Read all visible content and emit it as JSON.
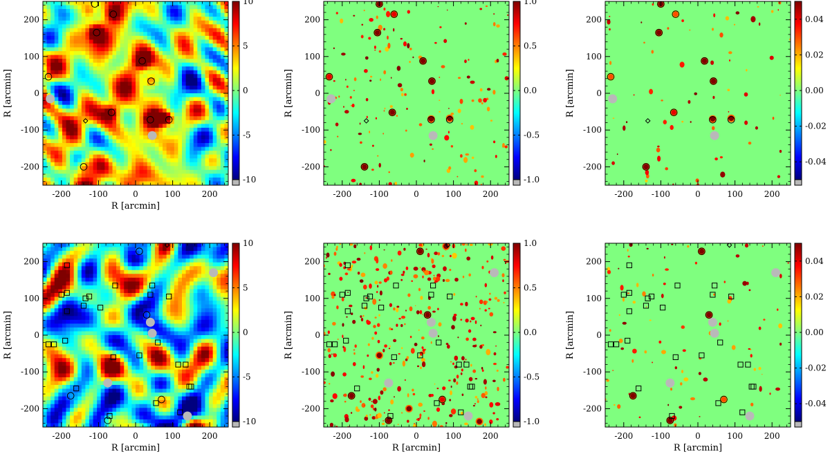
{
  "figure": {
    "colormap": [
      "#00007f",
      "#0000ff",
      "#007fff",
      "#00ffff",
      "#7fff7f",
      "#ffff00",
      "#ff7f00",
      "#ff0000",
      "#7f0000"
    ],
    "background_green": "#7fff7f",
    "masked_color": "#b9b9b9"
  },
  "chart_data": [
    {
      "id": "top-left",
      "type": "heatmap",
      "variant": "smooth",
      "xlabel": "R [arcmin]",
      "ylabel": "R [arcmin]",
      "xlim": [
        -250,
        250
      ],
      "ylim": [
        -250,
        250
      ],
      "xticks": [
        "-200",
        "-100",
        "0",
        "100",
        "200"
      ],
      "yticks": [
        "-200",
        "-100",
        "0",
        "100",
        "200"
      ],
      "colorbar": {
        "range": [
          -10,
          10
        ],
        "ticks": [
          "10",
          "5",
          "0",
          "-5",
          "-10"
        ]
      },
      "bg_level": 0.15,
      "hotspots": [
        [
          -105,
          165,
          10
        ],
        [
          18,
          88,
          10
        ],
        [
          42,
          33,
          9
        ],
        [
          -65,
          -52,
          7
        ],
        [
          45,
          -68,
          10
        ],
        [
          85,
          -68,
          10
        ],
        [
          65,
          -70,
          9
        ],
        [
          -140,
          -200,
          6
        ],
        [
          -235,
          45,
          5
        ],
        [
          -60,
          215,
          5
        ],
        [
          -125,
          225,
          5
        ]
      ],
      "circles": [
        [
          -105,
          165
        ],
        [
          18,
          88
        ],
        [
          42,
          33
        ],
        [
          -65,
          -52
        ],
        [
          40,
          -72
        ],
        [
          90,
          -72
        ],
        [
          -140,
          -200
        ],
        [
          -235,
          45
        ],
        [
          -60,
          215
        ],
        [
          -110,
          243
        ]
      ],
      "squares": [],
      "diamonds": [
        [
          -135,
          -75
        ]
      ],
      "masks": [
        [
          -230,
          -15
        ],
        [
          45,
          -115
        ]
      ]
    },
    {
      "id": "top-middle",
      "type": "heatmap",
      "variant": "sparse",
      "xlabel": "",
      "ylabel": "R [arcmin]",
      "xlim": [
        -250,
        250
      ],
      "ylim": [
        -250,
        250
      ],
      "xticks": [
        "-200",
        "-100",
        "0",
        "100",
        "200"
      ],
      "yticks": [
        "-200",
        "-100",
        "0",
        "100",
        "200"
      ],
      "colorbar": {
        "range": [
          -1.0,
          1.0
        ],
        "ticks": [
          "1.0",
          "0.5",
          "0.0",
          "-0.5",
          "-1.0"
        ]
      },
      "blob_count": 150,
      "hotspots": [
        [
          -105,
          165,
          1
        ],
        [
          18,
          88,
          1
        ],
        [
          42,
          33,
          1
        ],
        [
          -65,
          -52,
          1
        ],
        [
          40,
          -70,
          1
        ],
        [
          90,
          -68,
          1
        ],
        [
          -140,
          -200,
          1
        ],
        [
          -235,
          45,
          0.8
        ],
        [
          -60,
          215,
          0.8
        ],
        [
          -100,
          243,
          1
        ]
      ],
      "circles": [
        [
          -105,
          165
        ],
        [
          18,
          88
        ],
        [
          42,
          33
        ],
        [
          -65,
          -52
        ],
        [
          40,
          -72
        ],
        [
          90,
          -72
        ],
        [
          -140,
          -200
        ],
        [
          -235,
          45
        ],
        [
          -60,
          215
        ],
        [
          -100,
          243
        ]
      ],
      "squares": [],
      "diamonds": [
        [
          -135,
          -75
        ]
      ],
      "masks": [
        [
          -230,
          -15
        ],
        [
          45,
          -115
        ]
      ]
    },
    {
      "id": "top-right",
      "type": "heatmap",
      "variant": "sparse",
      "xlabel": "",
      "ylabel": "R [arcmin]",
      "xlim": [
        -250,
        250
      ],
      "ylim": [
        -250,
        250
      ],
      "xticks": [
        "-200",
        "-100",
        "0",
        "100",
        "200"
      ],
      "yticks": [
        "-200",
        "-100",
        "0",
        "100",
        "200"
      ],
      "colorbar": {
        "range": [
          -0.05,
          0.05
        ],
        "ticks": [
          "0.04",
          "0.02",
          "0.00",
          "-0.02",
          "-0.04"
        ]
      },
      "blob_count": 70,
      "hotspots": [
        [
          -105,
          165,
          1
        ],
        [
          18,
          88,
          1
        ],
        [
          42,
          33,
          1
        ],
        [
          -65,
          -52,
          0.8
        ],
        [
          40,
          -70,
          1
        ],
        [
          90,
          -68,
          1
        ],
        [
          -140,
          -200,
          1
        ],
        [
          -235,
          45,
          0.6
        ],
        [
          -60,
          215,
          0.6
        ],
        [
          -100,
          243,
          1
        ]
      ],
      "circles": [
        [
          -105,
          165
        ],
        [
          18,
          88
        ],
        [
          42,
          33
        ],
        [
          -65,
          -52
        ],
        [
          40,
          -72
        ],
        [
          90,
          -72
        ],
        [
          -140,
          -200
        ],
        [
          -235,
          45
        ],
        [
          -60,
          215
        ],
        [
          -100,
          243
        ]
      ],
      "squares": [],
      "diamonds": [
        [
          -135,
          -75
        ]
      ],
      "masks": [
        [
          -230,
          -15
        ],
        [
          45,
          -115
        ]
      ]
    },
    {
      "id": "bottom-left",
      "type": "heatmap",
      "variant": "smooth",
      "xlabel": "R [arcmin]",
      "ylabel": "R [arcmin]",
      "xlim": [
        -250,
        250
      ],
      "ylim": [
        -250,
        250
      ],
      "xticks": [
        "-200",
        "-100",
        "0",
        "100",
        "200"
      ],
      "yticks": [
        "-200",
        "-100",
        "0",
        "100",
        "200"
      ],
      "colorbar": {
        "range": [
          -10,
          10
        ],
        "ticks": [
          "10",
          "5",
          "0",
          "-5",
          "-10"
        ]
      },
      "bg_level": -0.1,
      "hotspots": [
        [
          10,
          228,
          6
        ],
        [
          30,
          55,
          6
        ],
        [
          -175,
          -165,
          5
        ],
        [
          -75,
          -232,
          5
        ],
        [
          70,
          -175,
          4
        ],
        [
          80,
          242,
          4
        ],
        [
          160,
          -240,
          5
        ],
        [
          210,
          -240,
          5
        ]
      ],
      "circles": [
        [
          10,
          228
        ],
        [
          30,
          55
        ],
        [
          -175,
          -165
        ],
        [
          -75,
          -232
        ],
        [
          70,
          -175
        ]
      ],
      "squares": [
        [
          -185,
          190
        ],
        [
          -200,
          110
        ],
        [
          -185,
          115
        ],
        [
          -135,
          100
        ],
        [
          -125,
          105
        ],
        [
          -140,
          80
        ],
        [
          -185,
          65
        ],
        [
          -235,
          -25
        ],
        [
          -220,
          -25
        ],
        [
          -190,
          -15
        ],
        [
          -55,
          135
        ],
        [
          45,
          135
        ],
        [
          -60,
          -60
        ],
        [
          10,
          -55
        ],
        [
          60,
          -20
        ],
        [
          90,
          105
        ],
        [
          115,
          -80
        ],
        [
          145,
          -140
        ],
        [
          55,
          -185
        ],
        [
          -160,
          -145
        ],
        [
          -70,
          -220
        ],
        [
          120,
          -210
        ],
        [
          -95,
          75
        ],
        [
          40,
          110
        ],
        [
          135,
          -80
        ],
        [
          150,
          -140
        ]
      ],
      "diamonds": [
        [
          85,
          245
        ]
      ],
      "masks": [
        [
          40,
          35
        ],
        [
          45,
          5
        ],
        [
          -75,
          -130
        ],
        [
          140,
          -220
        ],
        [
          210,
          170
        ]
      ]
    },
    {
      "id": "bottom-middle",
      "type": "heatmap",
      "variant": "sparse",
      "xlabel": "R [arcmin]",
      "ylabel": "R [arcmin]",
      "xlim": [
        -250,
        250
      ],
      "ylim": [
        -250,
        250
      ],
      "xticks": [
        "-200",
        "-100",
        "0",
        "100",
        "200"
      ],
      "yticks": [
        "-200",
        "-100",
        "0",
        "100",
        "200"
      ],
      "colorbar": {
        "range": [
          -1.0,
          1.0
        ],
        "ticks": [
          "1.0",
          "0.5",
          "0.0",
          "-0.5",
          "-1.0"
        ]
      },
      "blob_count": 380,
      "hotspots": [
        [
          10,
          228,
          1
        ],
        [
          30,
          55,
          1
        ],
        [
          -175,
          -165,
          1
        ],
        [
          -75,
          -232,
          1
        ],
        [
          70,
          -175,
          0.8
        ],
        [
          80,
          242,
          1
        ],
        [
          -100,
          -55,
          1
        ],
        [
          -20,
          -200,
          1
        ],
        [
          170,
          -235,
          1
        ]
      ],
      "circles": [
        [
          10,
          228
        ],
        [
          30,
          55
        ],
        [
          -175,
          -165
        ],
        [
          -75,
          -232
        ],
        [
          70,
          -175
        ]
      ],
      "squares": [
        [
          -185,
          190
        ],
        [
          -200,
          110
        ],
        [
          -185,
          115
        ],
        [
          -135,
          100
        ],
        [
          -125,
          105
        ],
        [
          -140,
          80
        ],
        [
          -185,
          65
        ],
        [
          -235,
          -25
        ],
        [
          -220,
          -25
        ],
        [
          -190,
          -15
        ],
        [
          -55,
          135
        ],
        [
          45,
          135
        ],
        [
          -60,
          -60
        ],
        [
          10,
          -55
        ],
        [
          60,
          -20
        ],
        [
          90,
          105
        ],
        [
          115,
          -80
        ],
        [
          145,
          -140
        ],
        [
          55,
          -185
        ],
        [
          -160,
          -145
        ],
        [
          -70,
          -220
        ],
        [
          120,
          -210
        ],
        [
          -95,
          75
        ],
        [
          40,
          110
        ],
        [
          135,
          -80
        ],
        [
          150,
          -140
        ]
      ],
      "diamonds": [
        [
          85,
          245
        ]
      ],
      "masks": [
        [
          40,
          35
        ],
        [
          45,
          5
        ],
        [
          -75,
          -130
        ],
        [
          140,
          -220
        ],
        [
          210,
          170
        ]
      ]
    },
    {
      "id": "bottom-right",
      "type": "heatmap",
      "variant": "sparse",
      "xlabel": "R [arcmin]",
      "ylabel": "R [arcmin]",
      "xlim": [
        -250,
        250
      ],
      "ylim": [
        -250,
        250
      ],
      "xticks": [
        "-200",
        "-100",
        "0",
        "100",
        "200"
      ],
      "yticks": [
        "-200",
        "-100",
        "0",
        "100",
        "200"
      ],
      "colorbar": {
        "range": [
          -0.05,
          0.05
        ],
        "ticks": [
          "0.04",
          "0.02",
          "0.00",
          "-0.02",
          "-0.04"
        ]
      },
      "blob_count": 90,
      "hotspots": [
        [
          10,
          228,
          1
        ],
        [
          30,
          55,
          1
        ],
        [
          -175,
          -165,
          1
        ],
        [
          -75,
          -232,
          1
        ],
        [
          70,
          -175,
          0.6
        ]
      ],
      "circles": [
        [
          10,
          228
        ],
        [
          30,
          55
        ],
        [
          -175,
          -165
        ],
        [
          -75,
          -232
        ],
        [
          70,
          -175
        ]
      ],
      "squares": [
        [
          -185,
          190
        ],
        [
          -200,
          110
        ],
        [
          -185,
          115
        ],
        [
          -135,
          100
        ],
        [
          -125,
          105
        ],
        [
          -140,
          80
        ],
        [
          -185,
          65
        ],
        [
          -235,
          -25
        ],
        [
          -220,
          -25
        ],
        [
          -190,
          -15
        ],
        [
          -55,
          135
        ],
        [
          45,
          135
        ],
        [
          -60,
          -60
        ],
        [
          10,
          -55
        ],
        [
          60,
          -20
        ],
        [
          90,
          105
        ],
        [
          115,
          -80
        ],
        [
          145,
          -140
        ],
        [
          55,
          -185
        ],
        [
          -160,
          -145
        ],
        [
          -70,
          -220
        ],
        [
          120,
          -210
        ],
        [
          -95,
          75
        ],
        [
          40,
          110
        ],
        [
          135,
          -80
        ],
        [
          150,
          -140
        ]
      ],
      "diamonds": [
        [
          85,
          245
        ]
      ],
      "masks": [
        [
          40,
          35
        ],
        [
          45,
          5
        ],
        [
          -75,
          -130
        ],
        [
          140,
          -220
        ],
        [
          210,
          170
        ]
      ]
    }
  ]
}
